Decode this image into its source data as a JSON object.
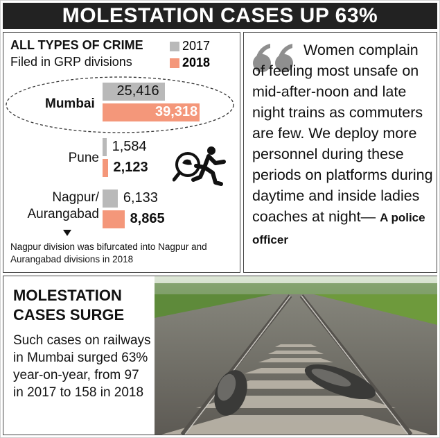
{
  "banner_title": "MOLESTATION CASES UP 63%",
  "chart": {
    "title": "ALL TYPES OF CRIME",
    "subtitle": "Filed in GRP divisions",
    "legend": [
      {
        "label": "2017",
        "color": "#b9b9b9"
      },
      {
        "label": "2018",
        "color": "#f4977a"
      }
    ],
    "footnote": "Nagpur division was bifurcated into Nagpur and Aurangabad divisions in 2018"
  },
  "chart_data": {
    "type": "bar",
    "orientation": "horizontal",
    "categories": [
      "Mumbai",
      "Pune",
      "Nagpur/ Aurangabad"
    ],
    "series": [
      {
        "name": "2017",
        "values": [
          25416,
          1584,
          6133
        ],
        "labels": [
          "25,416",
          "1,584",
          "6,133"
        ],
        "color": "#b9b9b9"
      },
      {
        "name": "2018",
        "values": [
          39318,
          2123,
          8865
        ],
        "labels": [
          "39,318",
          "2,123",
          "8,865"
        ],
        "color": "#f4977a"
      }
    ],
    "title": "ALL TYPES OF CRIME",
    "subtitle": "Filed in GRP divisions",
    "legend_placement": "top-right"
  },
  "quote": {
    "mark": "“",
    "text": "Women complain of feeling most unsafe on mid-after-noon and late night trains as commuters are few. We deploy more personnel during these periods on platforms during daytime and inside ladies coaches at night—",
    "attribution": "A police officer"
  },
  "bottom": {
    "title": "MOLESTATION CASES SURGE",
    "text": "Such cases on railways in Mumbai surged 63% year-on-year, from 97 in 2017 to 158 in 2018"
  },
  "icons": [
    "magnifier-thief-icon",
    "quote-mark-icon",
    "triangle-down-icon"
  ]
}
